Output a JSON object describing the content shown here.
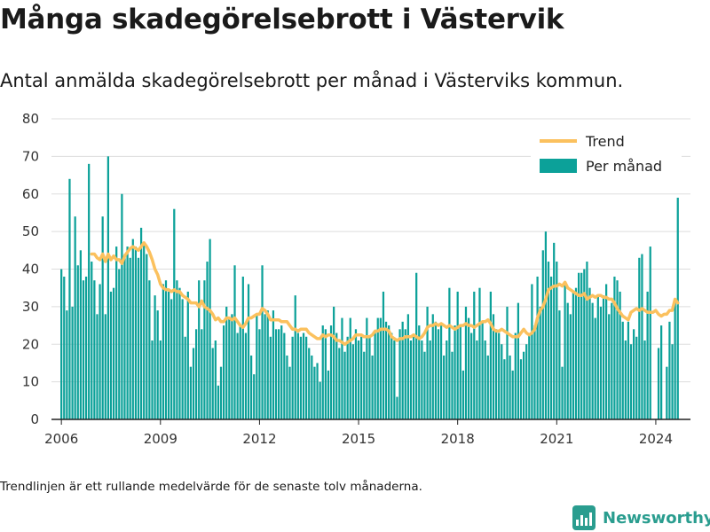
{
  "title": "Många skadegörelsebrott i Västervik",
  "subtitle": "Antal anmälda skadegörelsebrott per månad i Västerviks kommun.",
  "footnote": "Trendlinjen är ett rullande medelvärde för de senaste tolv månaderna.",
  "brand": {
    "name": "Newsworthy",
    "icon": "newsworthy-logo-icon",
    "color": "#2a9d8f"
  },
  "colors": {
    "bar": "#0ca199",
    "trend": "#fbc15e",
    "grid": "#dddddd",
    "axis": "#222222"
  },
  "chart_data": {
    "type": "bar",
    "x_type": "date",
    "ylim": [
      0,
      80
    ],
    "yticks": [
      0,
      10,
      20,
      30,
      40,
      50,
      60,
      70,
      80
    ],
    "xticks": [
      "2006",
      "2009",
      "2012",
      "2015",
      "2018",
      "2021",
      "2024"
    ],
    "grid": true,
    "legend": "top-right",
    "start_month": "2006-01",
    "series": [
      {
        "name": "Per månad",
        "type": "bar",
        "values": [
          40,
          38,
          29,
          64,
          30,
          54,
          41,
          45,
          37,
          38,
          68,
          42,
          37,
          28,
          36,
          54,
          28,
          70,
          34,
          35,
          46,
          40,
          60,
          44,
          46,
          43,
          48,
          46,
          43,
          51,
          47,
          44,
          37,
          21,
          33,
          29,
          21,
          36,
          37,
          34,
          32,
          56,
          37,
          35,
          32,
          22,
          34,
          14,
          19,
          24,
          37,
          24,
          37,
          42,
          48,
          19,
          21,
          9,
          14,
          25,
          30,
          27,
          28,
          41,
          23,
          25,
          38,
          23,
          36,
          17,
          12,
          28,
          24,
          41,
          28,
          29,
          22,
          29,
          24,
          24,
          25,
          23,
          17,
          14,
          22,
          33,
          23,
          22,
          23,
          22,
          19,
          17,
          14,
          15,
          10,
          25,
          24,
          13,
          25,
          30,
          23,
          19,
          27,
          18,
          22,
          27,
          20,
          24,
          21,
          22,
          18,
          27,
          22,
          17,
          23,
          27,
          27,
          34,
          26,
          25,
          23,
          21,
          6,
          24,
          26,
          24,
          28,
          21,
          22,
          39,
          25,
          21,
          18,
          30,
          21,
          28,
          26,
          24,
          25,
          17,
          21,
          35,
          18,
          25,
          34,
          25,
          13,
          30,
          27,
          23,
          34,
          21,
          35,
          26,
          21,
          17,
          34,
          28,
          24,
          23,
          20,
          16,
          30,
          17,
          13,
          23,
          31,
          16,
          18,
          20,
          23,
          36,
          25,
          38,
          30,
          45,
          50,
          42,
          38,
          47,
          42,
          29,
          14,
          36,
          31,
          28,
          34,
          35,
          39,
          39,
          40,
          42,
          35,
          31,
          27,
          33,
          30,
          33,
          36,
          28,
          31,
          38,
          37,
          34,
          26,
          21,
          26,
          20,
          24,
          22,
          43,
          44,
          21,
          34,
          46,
          0,
          0,
          19,
          25,
          0,
          14,
          26,
          20,
          32,
          59
        ]
      },
      {
        "name": "Trend",
        "type": "line",
        "values": [
          null,
          null,
          null,
          null,
          null,
          null,
          null,
          null,
          null,
          null,
          null,
          44,
          44,
          43,
          42.5,
          44,
          42,
          44,
          42.5,
          43.5,
          42.5,
          42.5,
          41.5,
          43.5,
          44.5,
          45.5,
          46,
          45.5,
          45,
          46,
          47,
          46,
          44.5,
          42.5,
          40,
          38.5,
          36,
          35,
          34.5,
          34.5,
          34,
          34.5,
          34,
          34,
          33,
          32.5,
          32,
          31,
          31,
          31,
          30,
          31.5,
          30,
          29.5,
          29,
          28,
          26.5,
          27,
          26,
          26,
          27,
          27,
          26.5,
          27,
          26,
          25,
          24.5,
          25.5,
          27,
          27,
          27.5,
          28,
          28,
          29.5,
          29,
          28,
          26.5,
          26.5,
          26.5,
          26.5,
          26,
          26,
          26,
          25,
          24,
          24,
          23.5,
          24,
          24,
          24,
          23,
          22.5,
          22,
          21.5,
          21.5,
          22.5,
          22,
          22.5,
          22.5,
          22,
          21,
          21,
          20.5,
          20,
          20.5,
          21,
          21.5,
          22.5,
          22.5,
          22.5,
          22,
          22,
          22,
          22.5,
          23.5,
          23.5,
          24,
          24,
          24,
          23.5,
          22,
          21.5,
          21,
          21.5,
          21.5,
          22,
          22,
          22,
          22.5,
          22,
          21.5,
          22,
          23,
          24.5,
          25,
          25,
          25.5,
          25,
          25.5,
          25,
          24.5,
          25,
          24.5,
          24,
          24.5,
          25,
          25,
          25.5,
          25,
          25,
          24.5,
          25,
          25.5,
          26,
          26,
          26.5,
          25.5,
          24,
          23.5,
          23.5,
          24,
          23.5,
          23,
          22.5,
          22,
          22,
          22,
          23,
          24,
          23,
          22.5,
          23,
          24,
          27,
          29,
          30,
          32,
          34.5,
          35,
          35.5,
          35.5,
          36,
          35.5,
          36.5,
          35,
          34.5,
          34,
          33.5,
          33,
          33,
          33.5,
          32,
          32.5,
          33,
          32.5,
          33,
          33,
          32.5,
          32.5,
          32,
          32,
          31,
          29.5,
          28.5,
          27.5,
          27,
          26.5,
          28.5,
          29,
          29.5,
          29,
          29.5,
          29,
          28.5,
          28.5,
          28.5,
          29,
          28,
          27.5,
          28,
          28,
          29,
          29,
          32,
          31
        ]
      }
    ]
  }
}
